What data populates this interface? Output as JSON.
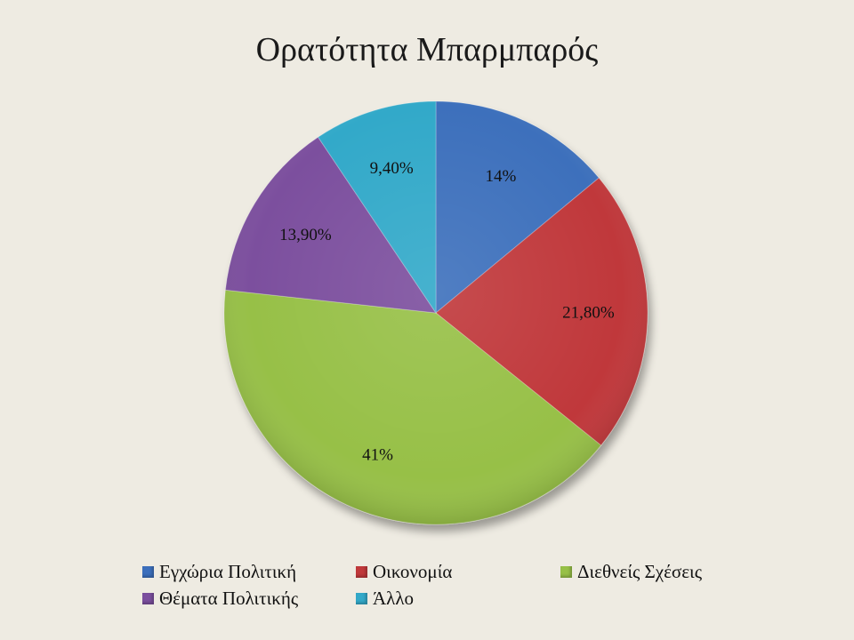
{
  "chart_data": {
    "type": "pie",
    "title": "Ορατότητα Μπαρμπαρός",
    "slices": [
      {
        "name": "Εγχώρια Πολιτική",
        "value": 14,
        "label": "14%",
        "color": "#3c6fbc"
      },
      {
        "name": "Οικονομία",
        "value": 21.8,
        "label": "21,80%",
        "color": "#c0393b"
      },
      {
        "name": "Διεθνείς Σχέσεις",
        "value": 41,
        "label": "41%",
        "color": "#97c047"
      },
      {
        "name": "Θέματα Πολιτικής",
        "value": 13.9,
        "label": "13,90%",
        "color": "#7b4f9e"
      },
      {
        "name": "Άλλο",
        "value": 9.4,
        "label": "9,40%",
        "color": "#33a9c9"
      }
    ],
    "legend_position": "bottom"
  }
}
